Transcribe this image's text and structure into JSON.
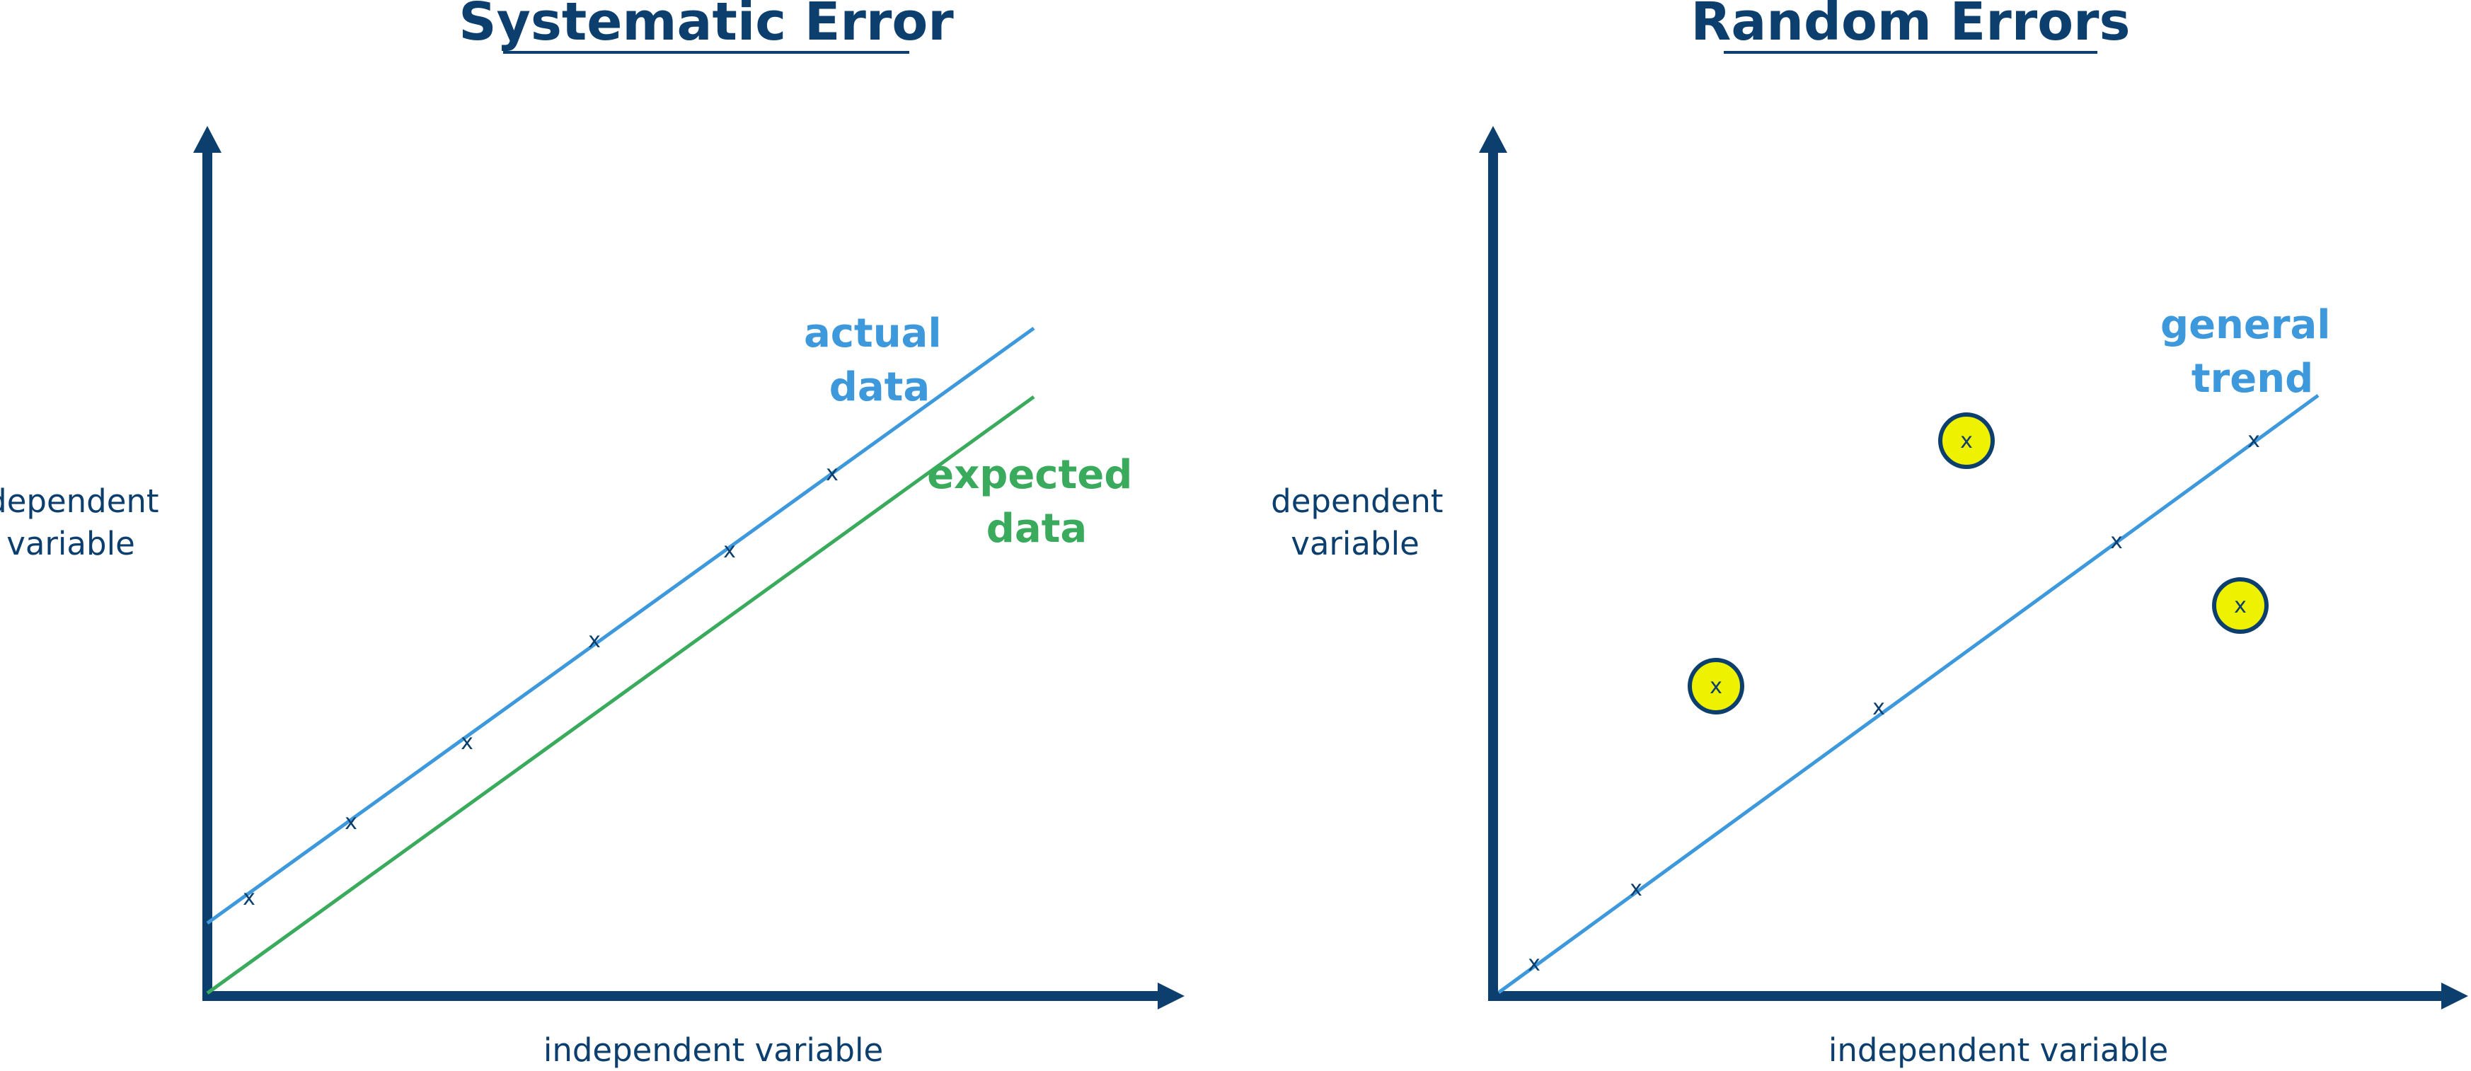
{
  "colors": {
    "axis": "#0d3f6e",
    "actual_line": "#3d98dc",
    "expected_line": "#3aaa5c",
    "label_text": "#0d3f6e",
    "marker": "#0d3f6e",
    "outlier_fill": "#eef200"
  },
  "left_panel": {
    "title": "Systematic Error",
    "ylabel": [
      "dependent",
      "variable"
    ],
    "xlabel": "independent variable",
    "actual_label": [
      "actual",
      "data"
    ],
    "expected_label": [
      "expected",
      "data"
    ],
    "marker_symbol": "x"
  },
  "right_panel": {
    "title": "Random Errors",
    "ylabel": [
      "dependent",
      "variable"
    ],
    "xlabel": "independent variable",
    "trend_label": [
      "general",
      "trend"
    ],
    "marker_symbol": "x"
  }
}
